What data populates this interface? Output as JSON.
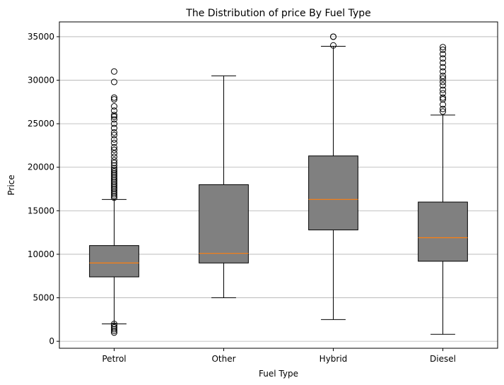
{
  "chart_data": {
    "type": "box",
    "title": "The Distribution of price By Fuel Type",
    "xlabel": "Fuel Type",
    "ylabel": "Price",
    "ylim": [
      -800,
      36700
    ],
    "yticks": [
      0,
      5000,
      10000,
      15000,
      20000,
      25000,
      30000,
      35000
    ],
    "grid": "y",
    "box_color": "#808080",
    "median_color": "#ff7f0e",
    "categories": [
      "Petrol",
      "Other",
      "Hybrid",
      "Diesel"
    ],
    "boxes": [
      {
        "name": "Petrol",
        "whisker_low": 2000,
        "q1": 7400,
        "median": 9000,
        "q3": 11000,
        "whisker_high": 16300,
        "outliers": [
          1000,
          1200,
          1400,
          1600,
          1800,
          2000,
          16500,
          16700,
          16900,
          17100,
          17300,
          17500,
          17700,
          17900,
          18100,
          18300,
          18500,
          18700,
          18900,
          19100,
          19300,
          19500,
          19700,
          19900,
          20200,
          20500,
          20800,
          21200,
          21600,
          22000,
          22300,
          22800,
          23200,
          23700,
          24000,
          24500,
          25000,
          25500,
          25800,
          26000,
          26500,
          27000,
          27800,
          28000,
          29800,
          31000
        ]
      },
      {
        "name": "Other",
        "whisker_low": 5000,
        "q1": 9000,
        "median": 10100,
        "q3": 18000,
        "whisker_high": 30500,
        "outliers": []
      },
      {
        "name": "Hybrid",
        "whisker_low": 2500,
        "q1": 12800,
        "median": 16300,
        "q3": 21300,
        "whisker_high": 33900,
        "outliers": [
          34000,
          35000,
          35000
        ]
      },
      {
        "name": "Diesel",
        "whisker_low": 800,
        "q1": 9200,
        "median": 11900,
        "q3": 16000,
        "whisker_high": 26000,
        "outliers": [
          26400,
          26700,
          27200,
          27800,
          28000,
          28500,
          28900,
          29400,
          29800,
          30200,
          30500,
          31000,
          31500,
          32000,
          32500,
          33000,
          33500,
          33800
        ]
      }
    ]
  }
}
